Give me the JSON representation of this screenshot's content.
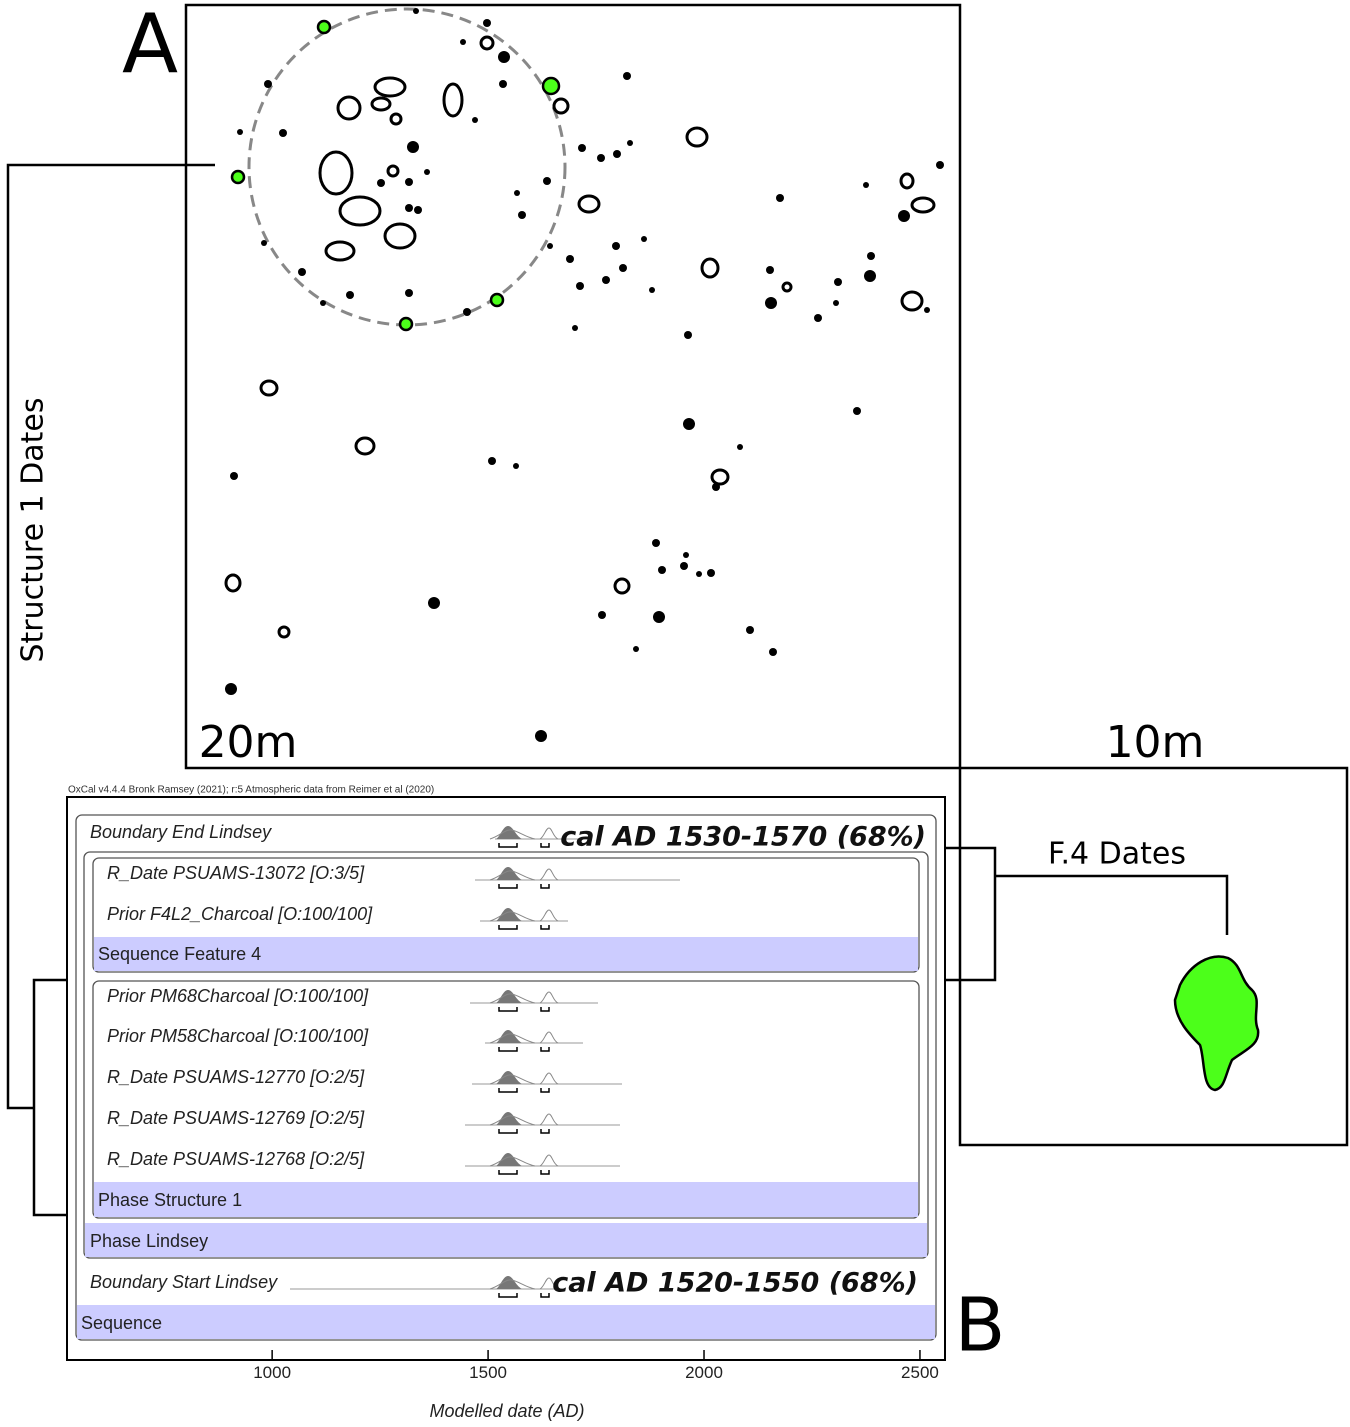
{
  "panel_a": {
    "label": "A",
    "scale_left": "20m",
    "scale_right": "10m",
    "structure_label": "Structure 1 Dates",
    "feature_label": "F.4 Dates"
  },
  "panel_b": {
    "label": "B",
    "header": "OxCal v4.4.4 Bronk Ramsey (2021); r:5 Atmospheric data from Reimer et al (2020)",
    "rows": [
      "Boundary End Lindsey",
      "R_Date PSUAMS-13072 [O:3/5]",
      "Prior F4L2_Charcoal [O:100/100]",
      "Sequence Feature 4",
      "Prior PM68Charcoal [O:100/100]",
      "Prior PM58Charcoal [O:100/100]",
      "R_Date PSUAMS-12770 [O:2/5]",
      "R_Date PSUAMS-12769 [O:2/5]",
      "R_Date PSUAMS-12768 [O:2/5]",
      "Phase Structure 1",
      "Phase Lindsey",
      "Boundary Start Lindsey",
      "Sequence"
    ],
    "annotations": [
      "cal AD 1530-1570 (68%)",
      "cal AD 1520-1550 (68%)"
    ],
    "x_axis": {
      "title": "Modelled date (AD)",
      "xlim": [
        525,
        2558
      ],
      "xticks": [
        1000,
        1500,
        2000,
        2500
      ]
    }
  }
}
